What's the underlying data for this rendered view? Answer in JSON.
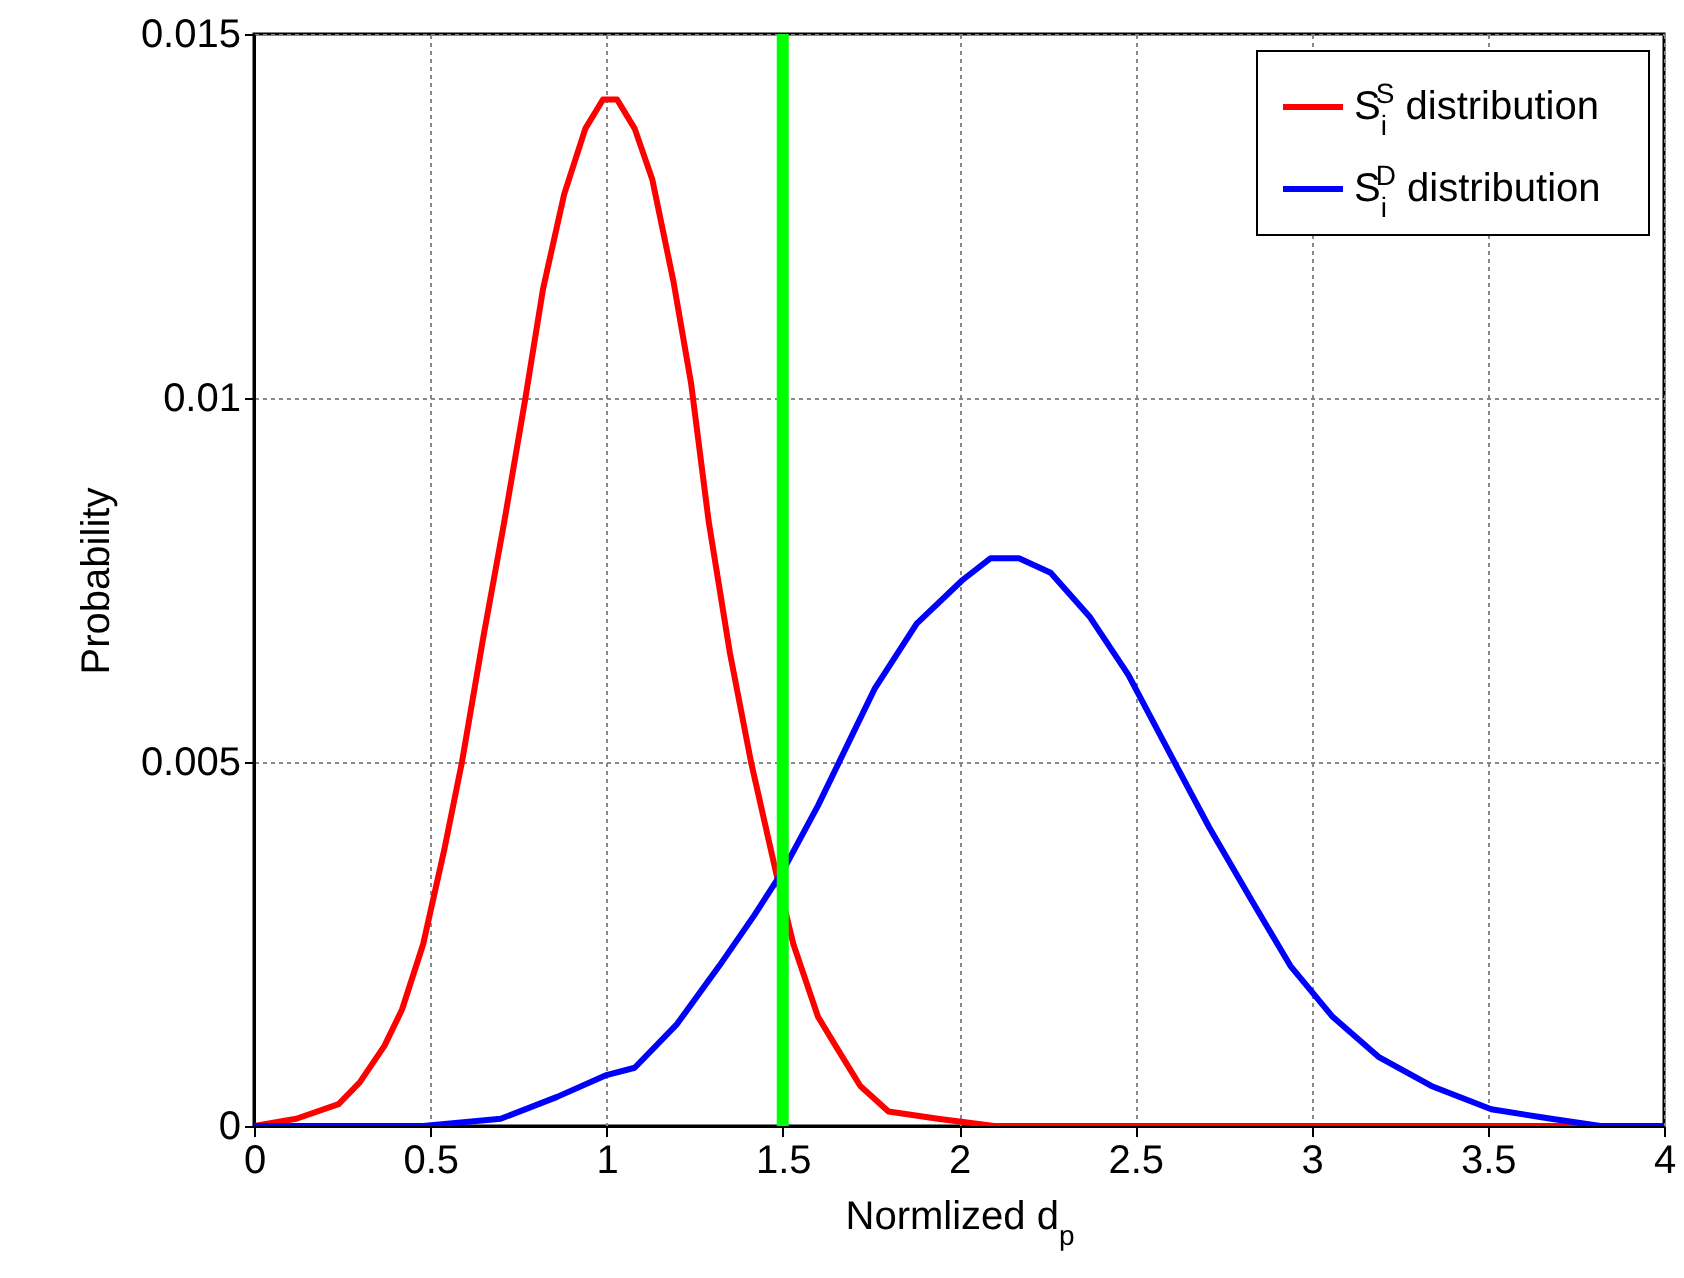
{
  "chart_data": {
    "type": "line",
    "xlabel": "Normlized d$_{p}$",
    "ylabel": "Probability",
    "xlim": [
      0,
      4
    ],
    "xticks": [
      0,
      0.5,
      1,
      1.5,
      2,
      2.5,
      3,
      3.5,
      4
    ],
    "ylim": [
      0,
      0.015
    ],
    "yticks": [
      0,
      0.005,
      0.01,
      0.015
    ],
    "grid": true,
    "legend": "top right",
    "line_style": "solid",
    "marker": "none",
    "ref_lines": [
      {
        "axis": "x",
        "value": 1.5,
        "color": "#00ff00"
      }
    ],
    "series": [
      {
        "name": "S$_{i}$$^{S}$ distribution",
        "color": "#ff0000",
        "x": [
          0,
          0.12,
          0.24,
          0.3,
          0.37,
          0.42,
          0.48,
          0.54,
          0.59,
          0.65,
          0.71,
          0.77,
          0.82,
          0.88,
          0.94,
          0.99,
          1.03,
          1.08,
          1.13,
          1.19,
          1.24,
          1.29,
          1.35,
          1.41,
          1.48,
          1.53,
          1.6,
          1.65,
          1.72,
          1.8,
          1.94,
          2.1,
          4
        ],
        "values": [
          0,
          0.0001,
          0.0003,
          0.0006,
          0.0011,
          0.0016,
          0.0025,
          0.0038,
          0.005,
          0.0067,
          0.0083,
          0.01,
          0.0115,
          0.0128,
          0.0137,
          0.0141,
          0.0141,
          0.0137,
          0.013,
          0.0116,
          0.0102,
          0.0083,
          0.0065,
          0.005,
          0.0035,
          0.0025,
          0.0015,
          0.0011,
          0.00055,
          0.0002,
          0.0001,
          0,
          0
        ]
      },
      {
        "name": "S$_{i}$$^{D}$ distribution",
        "color": "#0000ff",
        "x": [
          0,
          0.48,
          0.7,
          0.86,
          1,
          1.08,
          1.2,
          1.32,
          1.42,
          1.5,
          1.6,
          1.7,
          1.76,
          1.88,
          2.01,
          2.09,
          2.17,
          2.26,
          2.37,
          2.48,
          2.6,
          2.71,
          2.83,
          2.94,
          3.06,
          3.19,
          3.34,
          3.51,
          3.68,
          3.82,
          4
        ],
        "values": [
          0,
          0,
          0.0001,
          0.0004,
          0.0007,
          0.0008,
          0.0014,
          0.0022,
          0.0029,
          0.0035,
          0.0044,
          0.0054,
          0.006,
          0.0069,
          0.0075,
          0.0078,
          0.0078,
          0.0076,
          0.007,
          0.0062,
          0.0051,
          0.0041,
          0.0031,
          0.0022,
          0.0015,
          0.00095,
          0.00055,
          0.00023,
          0.0001,
          0,
          0
        ]
      }
    ]
  }
}
